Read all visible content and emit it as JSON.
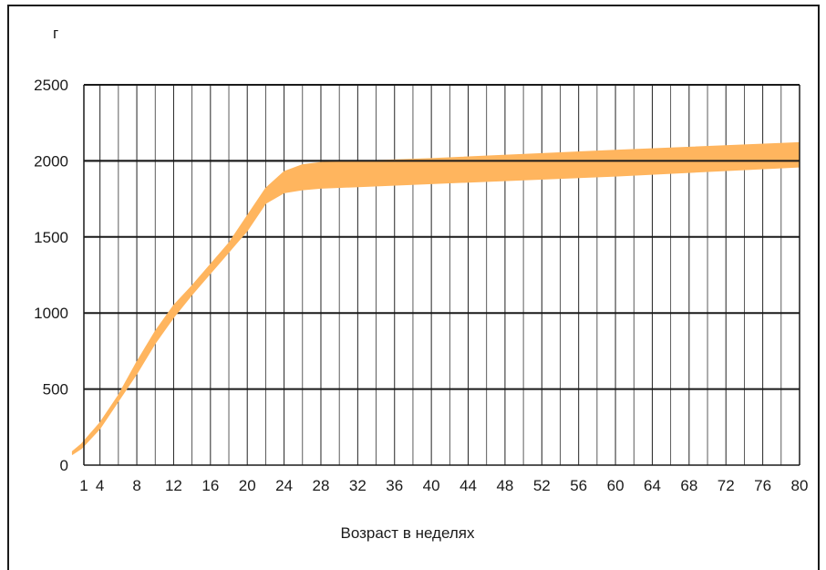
{
  "chart_data": {
    "type": "area",
    "title": "",
    "ylabel": "г",
    "xlabel": "Возраст в неделях",
    "xlim": [
      1,
      80
    ],
    "ylim": [
      0,
      2500
    ],
    "grid": true,
    "x_ticks": [
      1,
      4,
      8,
      12,
      16,
      20,
      24,
      28,
      32,
      36,
      40,
      44,
      48,
      52,
      56,
      60,
      64,
      68,
      72,
      76,
      80
    ],
    "y_ticks": [
      0,
      500,
      1000,
      1500,
      2000,
      2500
    ],
    "reference_line": 2000,
    "band_color": "#FFB55E",
    "series": [
      {
        "x": [
          1,
          2,
          4,
          6,
          8,
          10,
          12,
          14,
          16,
          18,
          20,
          22,
          24,
          26,
          28,
          40,
          60,
          80
        ],
        "lower": [
          70,
          110,
          240,
          420,
          600,
          800,
          970,
          1120,
          1260,
          1400,
          1540,
          1720,
          1790,
          1810,
          1820,
          1850,
          1900,
          1960
        ],
        "upper": [
          90,
          140,
          280,
          460,
          680,
          880,
          1050,
          1180,
          1320,
          1460,
          1640,
          1820,
          1930,
          1975,
          1990,
          2015,
          2070,
          2120
        ]
      }
    ]
  }
}
